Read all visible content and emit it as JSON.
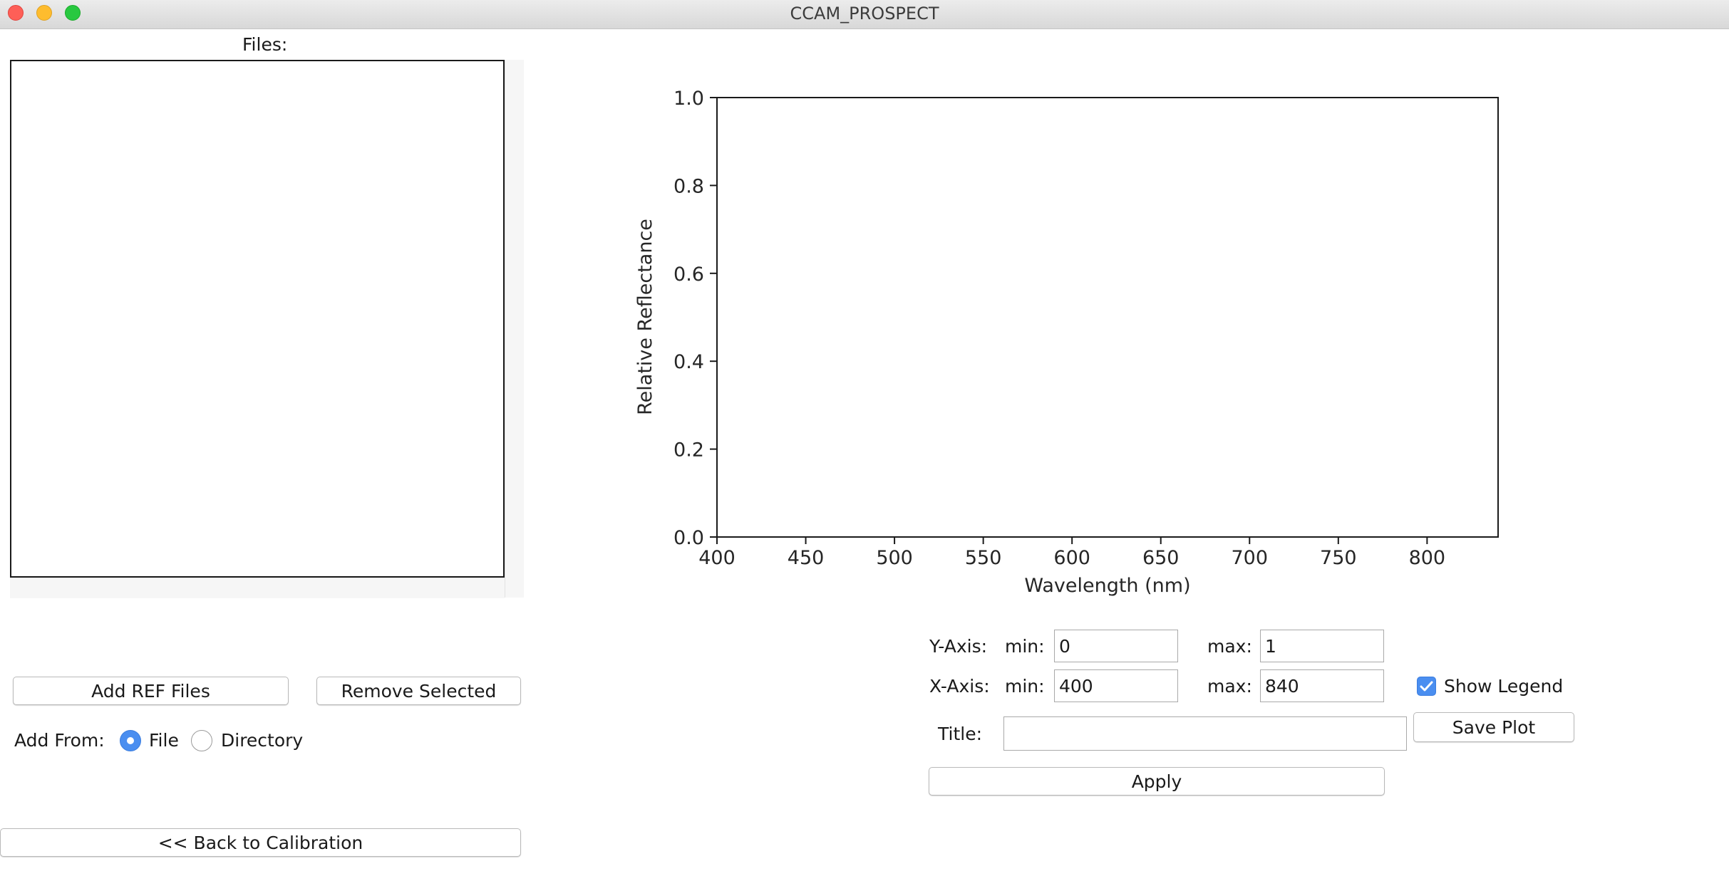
{
  "window": {
    "title": "CCAM_PROSPECT"
  },
  "files": {
    "label": "Files:",
    "items": []
  },
  "buttons": {
    "add_ref_files": "Add REF Files",
    "remove_selected": "Remove Selected",
    "back_to_calibration": "<< Back to Calibration",
    "save_plot": "Save Plot",
    "apply": "Apply"
  },
  "add_from": {
    "label": "Add From:",
    "options": [
      {
        "label": "File",
        "selected": true
      },
      {
        "label": "Directory",
        "selected": false
      }
    ]
  },
  "axis_controls": {
    "y_label": "Y-Axis:",
    "x_label": "X-Axis:",
    "min_label": "min:",
    "max_label": "max:",
    "y_min": "0",
    "y_max": "1",
    "x_min": "400",
    "x_max": "840",
    "title_label": "Title:",
    "title_value": "",
    "show_legend_label": "Show Legend",
    "show_legend_checked": true
  },
  "colors": {
    "accent": "#4a8ef0",
    "axis": "#1a1a1a"
  },
  "chart_data": {
    "type": "line",
    "title": "",
    "xlabel": "Wavelength (nm)",
    "ylabel": "Relative Reflectance",
    "xlim": [
      400,
      840
    ],
    "ylim": [
      0,
      1
    ],
    "xticks": [
      "400",
      "450",
      "500",
      "550",
      "600",
      "650",
      "700",
      "750",
      "800"
    ],
    "yticks": [
      "0.0",
      "0.2",
      "0.4",
      "0.6",
      "0.8",
      "1.0"
    ],
    "series": [],
    "grid": false
  }
}
